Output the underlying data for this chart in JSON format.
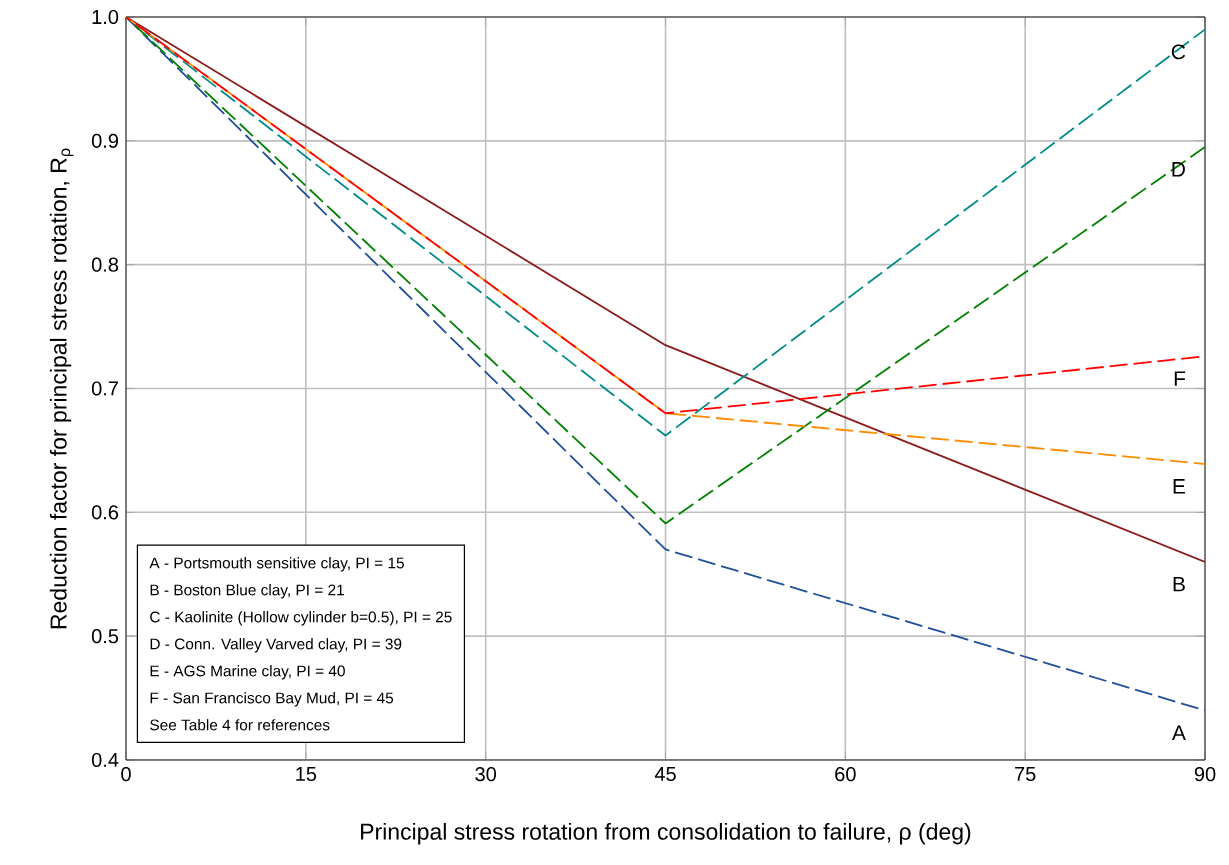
{
  "chart_data": {
    "type": "line",
    "xlabel": "Principal stress rotation from consolidation to failure, ρ (deg)",
    "ylabel": "Reduction factor for principal stress rotation, R$_{ρ}$",
    "x": [
      0,
      45,
      90
    ],
    "series": [
      {
        "name": "A",
        "color": "#1f4e9a",
        "line_style": "dashed",
        "values": [
          1.0,
          0.57,
          0.44
        ]
      },
      {
        "name": "B",
        "color": "#8b1a1a",
        "line_style": "solid",
        "values": [
          1.0,
          0.735,
          0.56
        ]
      },
      {
        "name": "C",
        "color": "#008b8b",
        "line_style": "dashed",
        "values": [
          1.0,
          0.662,
          0.99
        ]
      },
      {
        "name": "D",
        "color": "#008000",
        "line_style": "dashed",
        "values": [
          1.0,
          0.591,
          0.895
        ]
      },
      {
        "name": "E",
        "color": "#ff8c00",
        "line_style": "dashed",
        "values": [
          1.0,
          0.68,
          0.639
        ]
      },
      {
        "name": "F",
        "color": "#ff0000",
        "line_style": "dashed",
        "values": [
          1.0,
          0.68,
          0.726
        ]
      }
    ],
    "xlim": [
      0,
      90
    ],
    "xticks": [
      0,
      15,
      30,
      45,
      60,
      75,
      90
    ],
    "ylim": [
      0.4,
      1.0
    ],
    "yticks": [
      0.4,
      0.5,
      0.6,
      0.7,
      0.8,
      0.9,
      {
        "value": 1.0,
        "label": "1.0"
      }
    ],
    "grid": true,
    "marker": "none",
    "annotations": [
      "A - Portsmouth sensitive clay, PI = 15",
      "B - Boston Blue clay, PI = 21",
      "C - Kaolinite (Hollow cylinder b=0.5), PI = 25",
      "D - Conn. Valley Varved clay, PI = 39",
      "E - AGS Marine clay, PI = 40",
      "F - San Francisco Bay Mud, PI = 45",
      "See Table 4 for references"
    ]
  }
}
